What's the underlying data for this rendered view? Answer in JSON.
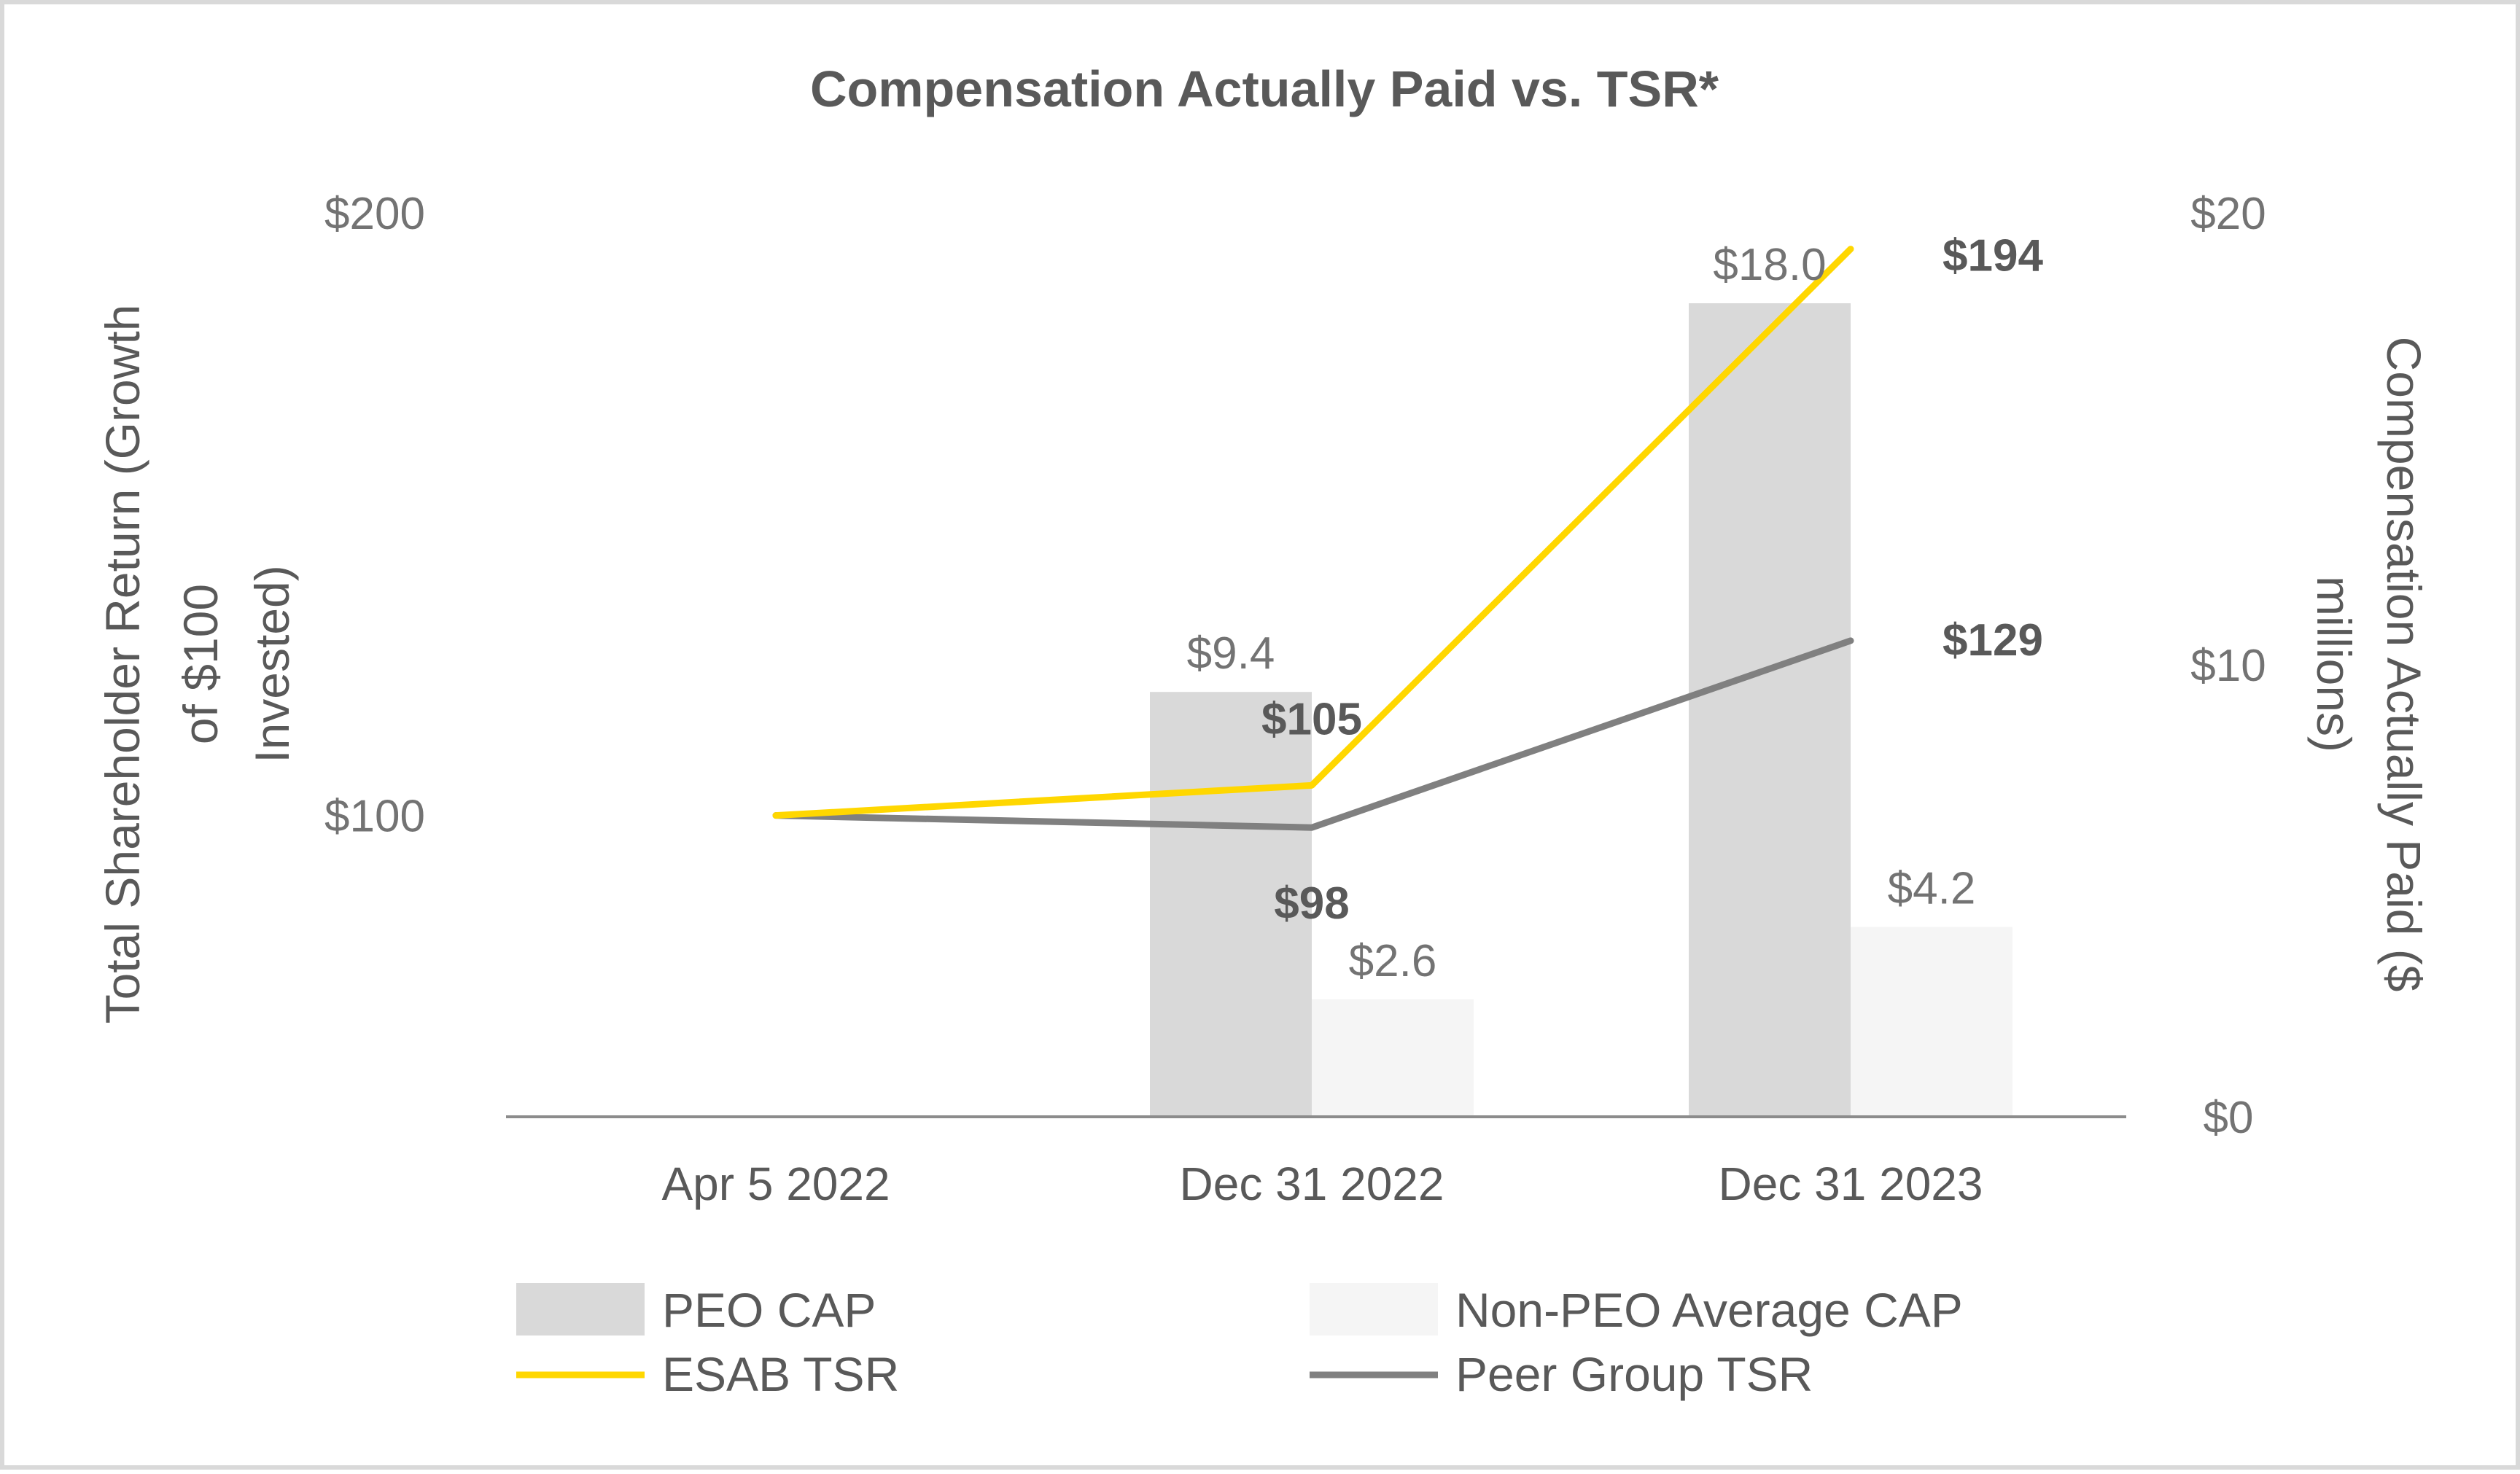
{
  "chart_data": {
    "type": "bar+line",
    "title": "Compensation Actually Paid vs. TSR*",
    "categories": [
      "Apr 5 2022",
      "Dec 31 2022",
      "Dec 31 2023"
    ],
    "left_axis": {
      "label": "Total Shareholder Return (Growth of $100 Invested)",
      "label_lines": [
        "Total Shareholder Return (Growth",
        "of $100",
        "Invested)"
      ],
      "range": [
        50,
        200
      ],
      "ticks": [
        100,
        200
      ],
      "tick_labels": [
        "$100",
        "$200"
      ]
    },
    "right_axis": {
      "label": "Compensation Actually Paid ($ millions)",
      "label_lines": [
        "Compensation Actually Paid ($",
        "millions)"
      ],
      "range": [
        0,
        20
      ],
      "ticks": [
        0,
        10,
        20
      ],
      "tick_labels": [
        "$0",
        "$10",
        "$20"
      ]
    },
    "bar_series": [
      {
        "name": "PEO CAP",
        "color": "#d9d9d9",
        "values": [
          null,
          9.4,
          18.0
        ],
        "labels": [
          null,
          "$9.4",
          "$18.0"
        ]
      },
      {
        "name": "Non-PEO Average CAP",
        "color": "#f5f5f5",
        "values": [
          null,
          2.6,
          4.2
        ],
        "labels": [
          null,
          "$2.6",
          "$4.2"
        ]
      }
    ],
    "line_series": [
      {
        "name": "ESAB TSR",
        "color": "#ffd700",
        "values": [
          100,
          105,
          194
        ],
        "labels": [
          null,
          "$105",
          "$194"
        ]
      },
      {
        "name": "Peer Group TSR",
        "color": "#808080",
        "values": [
          100,
          98,
          129
        ],
        "labels": [
          null,
          "$98",
          "$129"
        ]
      }
    ],
    "legend": {
      "placement": "bottom",
      "items": [
        {
          "name": "PEO CAP",
          "kind": "bar",
          "color": "#d9d9d9"
        },
        {
          "name": "Non-PEO Average CAP",
          "kind": "bar",
          "color": "#f5f5f5"
        },
        {
          "name": "ESAB TSR",
          "kind": "line",
          "color": "#ffd700"
        },
        {
          "name": "Peer Group TSR",
          "kind": "line",
          "color": "#808080"
        }
      ]
    }
  }
}
